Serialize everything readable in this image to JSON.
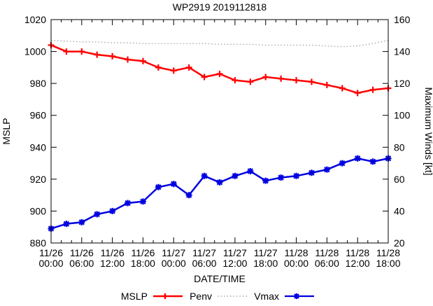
{
  "title": "WP2919 2019112818",
  "chart_data": {
    "type": "line",
    "title": "WP2919 2019112818",
    "xlabel": "DATE/TIME",
    "ylabel_left": "MSLP",
    "ylabel_right": "Maximum Winds [kt]",
    "ylim_left": [
      880,
      1020
    ],
    "ylim_right": [
      20,
      160
    ],
    "yticks_left": [
      1020,
      1000,
      980,
      960,
      940,
      920,
      900,
      880
    ],
    "yticks_right": [
      160,
      140,
      120,
      100,
      80,
      60,
      40,
      20
    ],
    "grid": false,
    "legend_position": "bottom-center",
    "x": [
      "11/26 00:00",
      "11/26 03:00",
      "11/26 06:00",
      "11/26 09:00",
      "11/26 12:00",
      "11/26 15:00",
      "11/26 18:00",
      "11/26 21:00",
      "11/27 00:00",
      "11/27 03:00",
      "11/27 06:00",
      "11/27 09:00",
      "11/27 12:00",
      "11/27 15:00",
      "11/27 18:00",
      "11/27 21:00",
      "11/28 00:00",
      "11/28 03:00",
      "11/28 06:00",
      "11/28 09:00",
      "11/28 12:00",
      "11/28 15:00",
      "11/28 18:00"
    ],
    "x_major_tick_labels": [
      [
        "11/26",
        "00:00"
      ],
      [
        "11/26",
        "06:00"
      ],
      [
        "11/26",
        "12:00"
      ],
      [
        "11/26",
        "18:00"
      ],
      [
        "11/27",
        "00:00"
      ],
      [
        "11/27",
        "06:00"
      ],
      [
        "11/27",
        "12:00"
      ],
      [
        "11/27",
        "18:00"
      ],
      [
        "11/28",
        "00:00"
      ],
      [
        "11/28",
        "06:00"
      ],
      [
        "11/28",
        "12:00"
      ],
      [
        "11/28",
        "18:00"
      ]
    ],
    "series": [
      {
        "name": "Penv",
        "axis": "left",
        "color": "#a8a8a8",
        "style": "dotted",
        "marker": "none",
        "values": [
          1007,
          1006.5,
          1006,
          1006,
          1005.5,
          1005.5,
          1005,
          1005,
          1005,
          1005,
          1005,
          1004.5,
          1004.5,
          1004.5,
          1004,
          1004,
          1004,
          1004,
          1003.5,
          1003,
          1003.5,
          1005,
          1007
        ]
      },
      {
        "name": "MSLP",
        "axis": "left",
        "color": "#ff0000",
        "style": "solid",
        "marker": "plus",
        "values": [
          1004,
          1000,
          1000,
          998,
          997,
          995,
          994,
          990,
          988,
          990,
          984,
          986,
          982,
          981,
          984,
          983,
          982,
          981,
          979,
          977,
          974,
          976,
          977
        ]
      },
      {
        "name": "Vmax",
        "axis": "right",
        "color": "#0000e0",
        "style": "solid",
        "marker": "asterisk",
        "values": [
          29,
          32,
          33,
          38,
          40,
          45,
          46,
          55,
          57,
          50,
          62,
          58,
          62,
          65,
          59,
          61,
          62,
          64,
          66,
          70,
          73,
          71,
          73
        ]
      }
    ]
  },
  "legend": {
    "items": [
      {
        "label": "MSLP"
      },
      {
        "label": "Penv"
      },
      {
        "label": "Vmax"
      }
    ]
  }
}
